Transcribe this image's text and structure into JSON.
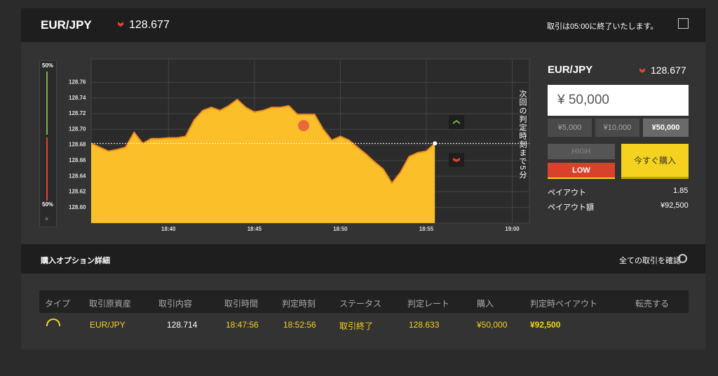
{
  "header": {
    "pair": "EUR/JPY",
    "rate": "128.677",
    "notice": "取引は05:00に終了いたします。"
  },
  "gauge": {
    "top": "50%",
    "bottom": "50%",
    "close": "×"
  },
  "chart_data": {
    "type": "area",
    "color": "#fbbf2a",
    "line_color": "#f08a1c",
    "categories": [
      null,
      null,
      null,
      null,
      null,
      null,
      null,
      null,
      null,
      "18:40",
      null,
      null,
      null,
      null,
      null,
      null,
      null,
      null,
      null,
      "18:45",
      null,
      null,
      null,
      null,
      null,
      null,
      null,
      null,
      null,
      "18:50",
      null,
      null,
      null,
      null,
      null,
      null,
      null,
      null,
      null,
      "18:55",
      null,
      null,
      null,
      null,
      null,
      null,
      null,
      null,
      null,
      "19:00",
      null,
      null
    ],
    "values": [
      128.682,
      128.677,
      128.672,
      128.674,
      128.677,
      128.696,
      128.682,
      128.688,
      128.688,
      128.689,
      128.689,
      128.691,
      128.712,
      128.724,
      128.728,
      128.724,
      128.73,
      128.738,
      128.728,
      128.722,
      128.724,
      128.728,
      128.728,
      128.73,
      128.719,
      128.719,
      128.719,
      128.7,
      128.686,
      128.691,
      128.686,
      128.677,
      128.668,
      128.658,
      128.649,
      128.631,
      128.645,
      128.665,
      128.67,
      128.672,
      128.682,
      null,
      null,
      null,
      null,
      null,
      null,
      null,
      null,
      null,
      null,
      null
    ],
    "ylim": [
      128.58,
      128.79
    ],
    "yticks": [
      {
        "value": 128.6,
        "label": "128.60"
      },
      128.62,
      128.64,
      128.66,
      128.68,
      {
        "value": 128.7,
        "label": "128.70"
      },
      128.72,
      128.74,
      128.76
    ],
    "grid": true,
    "annotation": "次回の判定時刻まで5分"
  },
  "panel": {
    "pair": "EUR/JPY",
    "rate": "128.677",
    "amount": "¥ 50,000",
    "presets": [
      "¥5,000",
      "¥10,000",
      "¥50,000"
    ],
    "high": "HIGH",
    "low": "LOW",
    "buy": "今すぐ購入",
    "payout_label": "ペイアウト",
    "payout": "1.85",
    "payout_amount_label": "ペイアウト額",
    "payout_amount": "¥92,500"
  },
  "options": {
    "title": "購入オプション詳細",
    "view_all": "全ての取引を確認"
  },
  "table": {
    "headers": [
      "タイプ",
      "取引原資産",
      "取引内容",
      "取引時間",
      "判定時刻",
      "ステータス",
      "判定レート",
      "購入",
      "判定時ペイアウト",
      "転売する"
    ],
    "rows": [
      [
        "EUR/JPY",
        "128.714",
        "18:47:56",
        "18:52:56",
        "取引終了",
        "128.633",
        "¥50,000",
        "¥92,500"
      ]
    ]
  }
}
